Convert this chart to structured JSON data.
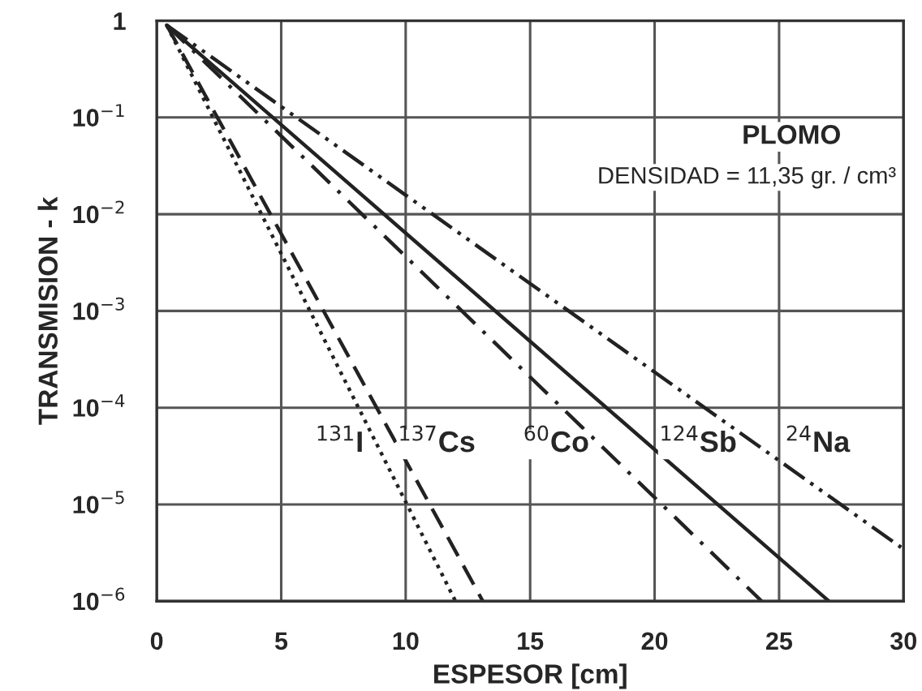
{
  "chart_data": {
    "type": "line",
    "xlabel": "ESPESOR [cm]",
    "ylabel": "TRANSMISION - k",
    "series": [
      {
        "color": "#222222",
        "line_style": "dotted",
        "x": [
          0.4,
          12.0
        ],
        "values": [
          0.9,
          1e-06
        ]
      },
      {
        "color": "#222222",
        "line_style": "dashed",
        "x": [
          0.4,
          13.1
        ],
        "values": [
          0.9,
          1e-06
        ]
      },
      {
        "color": "#222222",
        "line_style": "dashdot",
        "x": [
          0.4,
          24.3
        ],
        "values": [
          0.9,
          1e-06
        ]
      },
      {
        "color": "#222222",
        "line_style": "solid",
        "x": [
          0.4,
          27.0
        ],
        "values": [
          0.9,
          1e-06
        ]
      },
      {
        "color": "#222222",
        "line_style": "dashdotdot",
        "x": [
          0.4,
          29.9
        ],
        "values": [
          0.9,
          3.6e-06
        ]
      }
    ],
    "annotations": [
      "PLOMO",
      "DENSIDAD = 11,35 gr. / cm³",
      "$^{131}$I",
      "$^{137}$Cs",
      "$^{60}$Co",
      "$^{124}$Sb",
      "$^{24}$Na"
    ],
    "log": "y",
    "xlim": [
      0,
      30
    ],
    "ylim": [
      1e-06,
      1
    ],
    "xticks": [
      0,
      5,
      10,
      15,
      20,
      25,
      30
    ],
    "yticks": [
      {
        "value": 1e-06,
        "label": "10$^{−6}$"
      },
      {
        "value": 1e-05,
        "label": "10$^{−5}$"
      },
      {
        "value": 0.0001,
        "label": "10$^{−4}$"
      },
      {
        "value": 0.001,
        "label": "10$^{−3}$"
      },
      {
        "value": 0.01,
        "label": "10$^{−2}$"
      },
      {
        "value": 0.1,
        "label": "10$^{−1}$"
      },
      1
    ],
    "grid": true,
    "legend": false
  }
}
